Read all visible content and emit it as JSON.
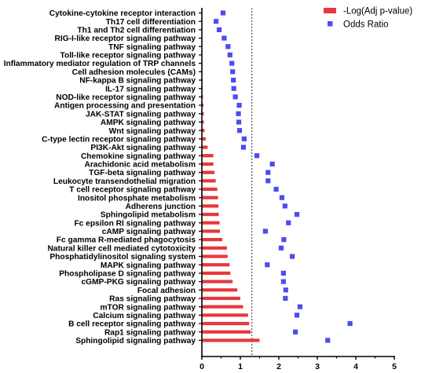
{
  "chart_data": {
    "type": "bar",
    "categories": [
      "Cytokine-cytokine receptor interaction",
      "Th17 cell differentiation",
      "Th1 and Th2 cell differentiation",
      "RIG-I-like receptor signaling pathway",
      "TNF signaling pathway",
      "Toll-like receptor signaling pathway",
      "Inflammatory mediator regulation of TRP channels",
      "Cell adhesion molecules (CAMs)",
      "NF-kappa B signaling pathway",
      "IL-17 signaling pathway",
      "NOD-like receptor signaling pathway",
      "Antigen processing and presentation",
      "JAK-STAT signaling pathway",
      "AMPK signaling pathway",
      "Wnt signaling pathway",
      "C-type lectin receptor signaling pathway",
      "PI3K-Akt signaling pathway",
      "Chemokine signaling pathway",
      "Arachidonic acid metabolism",
      "TGF-beta signaling pathway",
      "Leukocyte transendothelial migration",
      "T cell receptor signaling pathway",
      "Inositol phosphate metabolism",
      "Adherens junction",
      "Sphingolipid metabolism",
      "Fc epsilon RI signaling pathway",
      "cAMP signaling pathway",
      "Fc gamma R-mediated phagocytosis",
      "Natural killer cell mediated cytotoxicity",
      "Phosphatidylinositol signaling system",
      "MAPK signaling pathway",
      "Phospholipase D signaling pathway",
      "cGMP-PKG signaling pathway",
      "Focal adhesion",
      "Ras signaling pathway",
      "mTOR signaling pathway",
      "Calcium signaling pathway",
      "B cell receptor signaling pathway",
      "Rap1 signaling pathway",
      "Sphingolipid signaling pathway"
    ],
    "series": [
      {
        "name": "-Log(Adj p-value)",
        "kind": "bar",
        "color": "#e8383d",
        "values": [
          0.0,
          0.0,
          0.0,
          0.0,
          0.0,
          0.0,
          0.0,
          0.01,
          0.02,
          0.02,
          0.03,
          0.04,
          0.05,
          0.05,
          0.07,
          0.1,
          0.15,
          0.3,
          0.3,
          0.33,
          0.36,
          0.4,
          0.42,
          0.43,
          0.44,
          0.46,
          0.47,
          0.53,
          0.65,
          0.67,
          0.72,
          0.74,
          0.8,
          0.92,
          1.0,
          1.07,
          1.2,
          1.23,
          1.27,
          1.5
        ]
      },
      {
        "name": "Odds Ratio",
        "kind": "scatter",
        "color": "#4c4cf0",
        "values": [
          0.55,
          0.37,
          0.45,
          0.58,
          0.68,
          0.73,
          0.78,
          0.8,
          0.82,
          0.83,
          0.87,
          0.97,
          0.95,
          0.96,
          0.98,
          1.1,
          1.08,
          1.43,
          1.83,
          1.72,
          1.72,
          1.93,
          2.08,
          2.16,
          2.47,
          2.25,
          1.65,
          2.13,
          2.06,
          2.35,
          1.7,
          2.12,
          2.12,
          2.18,
          2.17,
          2.55,
          2.47,
          3.85,
          2.43,
          3.27
        ]
      }
    ],
    "xlim": [
      0,
      5
    ],
    "xticks": [
      "0",
      "1",
      "2",
      "3",
      "4",
      "5"
    ],
    "reference_line": 1.3,
    "legend_position": "top-right",
    "xlabel": "",
    "ylabel": "",
    "title": ""
  }
}
